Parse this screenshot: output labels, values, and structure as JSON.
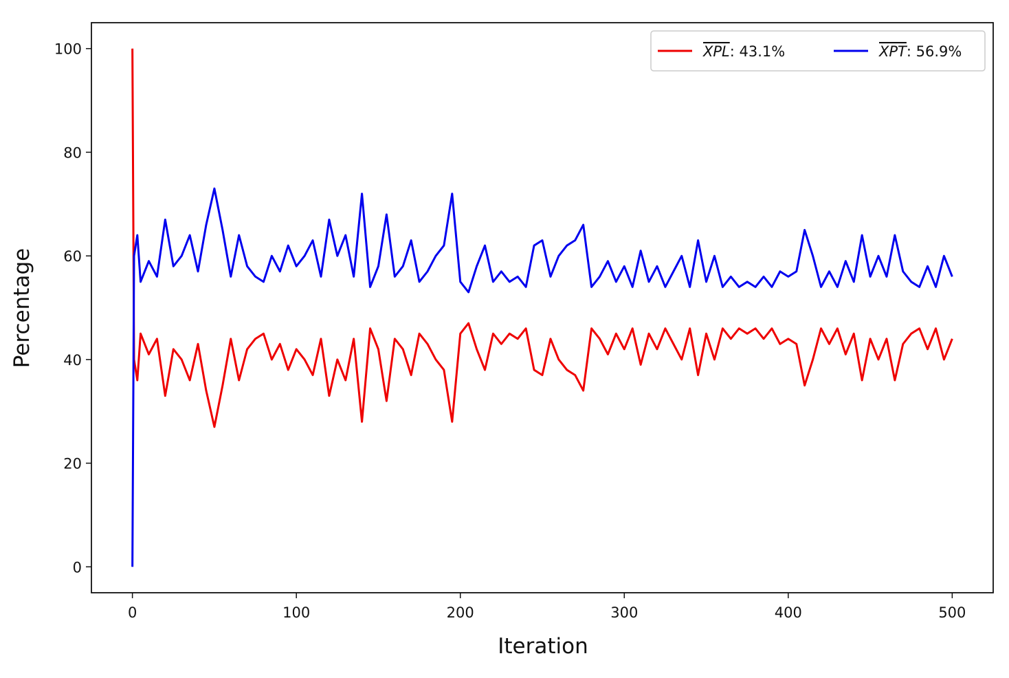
{
  "chart_data": {
    "type": "line",
    "xlabel": "Iteration",
    "ylabel": "Percentage",
    "x": [
      0,
      1,
      3,
      5,
      10,
      15,
      20,
      25,
      30,
      35,
      40,
      45,
      50,
      55,
      60,
      65,
      70,
      75,
      80,
      85,
      90,
      95,
      100,
      105,
      110,
      115,
      120,
      125,
      130,
      135,
      140,
      145,
      150,
      155,
      160,
      165,
      170,
      175,
      180,
      185,
      190,
      195,
      200,
      205,
      210,
      215,
      220,
      225,
      230,
      235,
      240,
      245,
      250,
      255,
      260,
      265,
      270,
      275,
      280,
      285,
      290,
      295,
      300,
      305,
      310,
      315,
      320,
      325,
      330,
      335,
      340,
      345,
      350,
      355,
      360,
      365,
      370,
      375,
      380,
      385,
      390,
      395,
      400,
      405,
      410,
      415,
      420,
      425,
      430,
      435,
      440,
      445,
      450,
      455,
      460,
      465,
      470,
      475,
      480,
      485,
      490,
      495,
      500
    ],
    "series": [
      {
        "name": "XPL: 43.1%",
        "color": "#ee0000",
        "values": [
          100,
          40,
          36,
          45,
          41,
          44,
          33,
          42,
          40,
          36,
          43,
          34,
          27,
          35,
          44,
          36,
          42,
          44,
          45,
          40,
          43,
          38,
          42,
          40,
          37,
          44,
          33,
          40,
          36,
          44,
          28,
          46,
          42,
          32,
          44,
          42,
          37,
          45,
          43,
          40,
          38,
          28,
          45,
          47,
          42,
          38,
          45,
          43,
          45,
          44,
          46,
          38,
          37,
          44,
          40,
          38,
          37,
          34,
          46,
          44,
          41,
          45,
          42,
          46,
          39,
          45,
          42,
          46,
          43,
          40,
          46,
          37,
          45,
          40,
          46,
          44,
          46,
          45,
          46,
          44,
          46,
          43,
          44,
          43,
          35,
          40,
          46,
          43,
          46,
          41,
          45,
          36,
          44,
          40,
          44,
          36,
          43,
          45,
          46,
          42,
          46,
          40,
          44
        ]
      },
      {
        "name": "XPT: 56.9%",
        "color": "#0000ee",
        "values": [
          0,
          60,
          64,
          55,
          59,
          56,
          67,
          58,
          60,
          64,
          57,
          66,
          73,
          65,
          56,
          64,
          58,
          56,
          55,
          60,
          57,
          62,
          58,
          60,
          63,
          56,
          67,
          60,
          64,
          56,
          72,
          54,
          58,
          68,
          56,
          58,
          63,
          55,
          57,
          60,
          62,
          72,
          55,
          53,
          58,
          62,
          55,
          57,
          55,
          56,
          54,
          62,
          63,
          56,
          60,
          62,
          63,
          66,
          54,
          56,
          59,
          55,
          58,
          54,
          61,
          55,
          58,
          54,
          57,
          60,
          54,
          63,
          55,
          60,
          54,
          56,
          54,
          55,
          54,
          56,
          54,
          57,
          56,
          57,
          65,
          60,
          54,
          57,
          54,
          59,
          55,
          64,
          56,
          60,
          56,
          64,
          57,
          55,
          54,
          58,
          54,
          60,
          56
        ]
      }
    ],
    "xlim": [
      -25,
      525
    ],
    "xticks": [
      0,
      100,
      200,
      300,
      400,
      500
    ],
    "ylim": [
      -5,
      105
    ],
    "yticks": [
      0,
      20,
      40,
      60,
      80,
      100
    ],
    "legend": "upper right"
  }
}
